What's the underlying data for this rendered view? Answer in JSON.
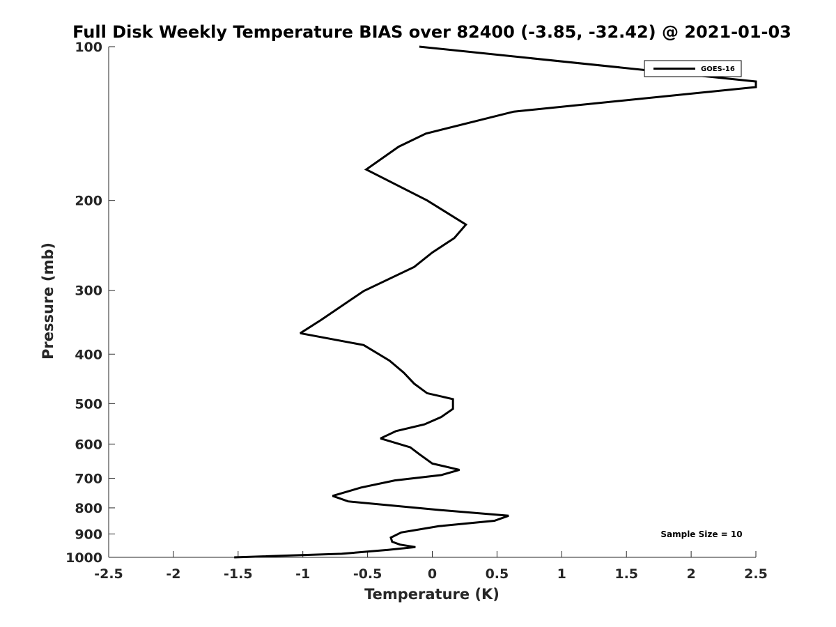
{
  "chart_data": {
    "type": "line",
    "title": "Full Disk Weekly Temperature BIAS over 82400 (-3.85, -32.42) @ 2021-01-03",
    "xlabel": "Temperature (K)",
    "ylabel": "Pressure (mb)",
    "xlim": [
      -2.5,
      2.5
    ],
    "ylim": [
      1000,
      100
    ],
    "y_scale": "log",
    "y_reversed": true,
    "grid": false,
    "legend_position": "top-right",
    "x_ticks": [
      -2.5,
      -2,
      -1.5,
      -1,
      -0.5,
      0,
      0.5,
      1,
      1.5,
      2,
      2.5
    ],
    "x_tick_labels": [
      "-2.5",
      "-2",
      "-1.5",
      "-1",
      "-0.5",
      "0",
      "0.5",
      "1",
      "1.5",
      "2",
      "2.5"
    ],
    "y_ticks": [
      100,
      200,
      300,
      400,
      500,
      600,
      700,
      800,
      900,
      1000
    ],
    "y_tick_labels": [
      "100",
      "200",
      "300",
      "400",
      "500",
      "600",
      "700",
      "800",
      "900",
      "1000"
    ],
    "series": [
      {
        "name": "GOES-16",
        "color": "#000000",
        "x": [
          -0.1,
          2.5,
          2.5,
          0.63,
          -0.05,
          -0.26,
          -0.51,
          -0.04,
          0.26,
          0.17,
          0.0,
          -0.14,
          -0.53,
          -0.74,
          -0.86,
          -1.02,
          -0.53,
          -0.33,
          -0.22,
          -0.14,
          -0.04,
          0.16,
          0.16,
          0.07,
          -0.06,
          -0.28,
          -0.4,
          -0.17,
          -0.1,
          0.0,
          0.21,
          0.07,
          -0.29,
          -0.55,
          -0.77,
          -0.65,
          0.06,
          0.59,
          0.48,
          0.05,
          -0.24,
          -0.32,
          -0.31,
          -0.25,
          -0.13,
          -0.34,
          -0.7,
          -1.53
        ],
        "y": [
          100,
          117,
          120,
          134,
          148,
          157,
          174,
          200,
          223,
          237,
          253,
          270,
          301,
          327,
          343,
          364,
          384,
          412,
          435,
          457,
          477,
          490,
          512,
          531,
          549,
          566,
          585,
          609,
          628,
          655,
          674,
          690,
          707,
          730,
          758,
          777,
          808,
          829,
          848,
          869,
          894,
          915,
          932,
          944,
          955,
          967,
          984,
          1000
        ]
      }
    ],
    "annotations": [
      "Sample Size = 10"
    ]
  }
}
